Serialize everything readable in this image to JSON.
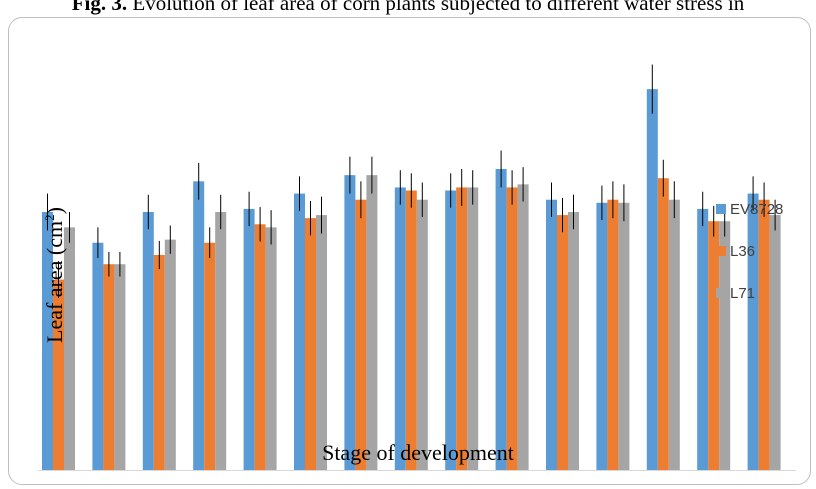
{
  "title_bold": "Fig. 3.",
  "title_rest": " Evolution of leaf area of corn plants subjected to different water stress in",
  "chart_data": {
    "type": "bar",
    "title": "Fig. 3. Evolution of leaf area of corn plants subjected to different water stress in",
    "xlabel": "Stage of development",
    "ylabel_main": "Leaf area (cm",
    "ylabel_sup": "2",
    "ylabel_close": ")",
    "ylabel": "Leaf area (cm2)",
    "ylim": [
      0,
      70
    ],
    "grid": false,
    "legend_position": "right",
    "categories": [
      "",
      "",
      "",
      "",
      "",
      "",
      "",
      "",
      "",
      "",
      "",
      "",
      "",
      "",
      ""
    ],
    "series": [
      {
        "name": "EV8728",
        "color": "#5b9bd5",
        "values": [
          42,
          37,
          42,
          47,
          42.5,
          45,
          48,
          46,
          45.5,
          49,
          44,
          43.5,
          62,
          42.5,
          45
        ],
        "errors": [
          3,
          2.5,
          2.8,
          3,
          2.8,
          2.8,
          3,
          2.8,
          2.8,
          3,
          2.8,
          2.8,
          4,
          2.8,
          2.8
        ]
      },
      {
        "name": "L36",
        "color": "#ed7d31",
        "values": [
          31,
          33.5,
          35,
          37,
          40,
          41,
          44,
          45.5,
          46,
          46,
          41.5,
          44,
          47.5,
          40.5,
          44
        ],
        "errors": [
          3,
          2,
          2.3,
          2.5,
          2.8,
          2.8,
          3,
          2.8,
          3,
          2.8,
          2.8,
          3,
          3,
          2.5,
          2.8
        ]
      },
      {
        "name": "L71",
        "color": "#a5a5a5",
        "values": [
          39.5,
          33.5,
          37.5,
          42,
          39.5,
          41.5,
          48,
          44,
          46,
          46.5,
          42,
          43.5,
          44,
          40.5,
          41.5
        ],
        "errors": [
          2.5,
          2,
          2.3,
          2.8,
          2.8,
          3,
          3,
          2.8,
          2.8,
          2.8,
          2.8,
          3,
          3,
          2.5,
          2.5
        ]
      }
    ]
  }
}
